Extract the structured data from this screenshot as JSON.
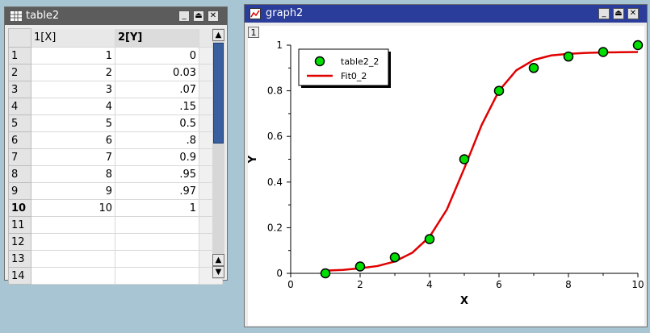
{
  "table_window": {
    "title": "table2",
    "columns": [
      "1[X]",
      "2[Y]"
    ],
    "active_row": "10",
    "rows": [
      {
        "n": "1",
        "x": "1",
        "y": "0"
      },
      {
        "n": "2",
        "x": "2",
        "y": "0.03"
      },
      {
        "n": "3",
        "x": "3",
        "y": ".07"
      },
      {
        "n": "4",
        "x": "4",
        "y": ".15"
      },
      {
        "n": "5",
        "x": "5",
        "y": "0.5"
      },
      {
        "n": "6",
        "x": "6",
        "y": ".8"
      },
      {
        "n": "7",
        "x": "7",
        "y": "0.9"
      },
      {
        "n": "8",
        "x": "8",
        "y": ".95"
      },
      {
        "n": "9",
        "x": "9",
        "y": ".97"
      },
      {
        "n": "10",
        "x": "10",
        "y": "1"
      },
      {
        "n": "11",
        "x": "",
        "y": ""
      },
      {
        "n": "12",
        "x": "",
        "y": ""
      },
      {
        "n": "13",
        "x": "",
        "y": ""
      },
      {
        "n": "14",
        "x": "",
        "y": ""
      }
    ]
  },
  "graph_window": {
    "title": "graph2",
    "layer_label": "1"
  },
  "chart_data": {
    "type": "scatter",
    "xlabel": "X",
    "ylabel": "Y",
    "xlim": [
      0,
      10
    ],
    "ylim": [
      0,
      1
    ],
    "xticks": [
      "0",
      "2",
      "4",
      "6",
      "8",
      "10"
    ],
    "yticks": [
      "0",
      "0.2",
      "0.4",
      "0.6",
      "0.8",
      "1"
    ],
    "legend_position": "top-left",
    "series": [
      {
        "name": "table2_2",
        "style": "markers",
        "color": "#00e000",
        "x": [
          1,
          2,
          3,
          4,
          5,
          6,
          7,
          8,
          9,
          10
        ],
        "y": [
          0,
          0.03,
          0.07,
          0.15,
          0.5,
          0.8,
          0.9,
          0.95,
          0.97,
          1
        ]
      },
      {
        "name": "Fit0_2",
        "style": "line",
        "color": "#e00000",
        "x": [
          1,
          1.5,
          2,
          2.5,
          3,
          3.5,
          4,
          4.5,
          5,
          5.5,
          6,
          6.5,
          7,
          7.5,
          8,
          8.5,
          9,
          9.5,
          10
        ],
        "y": [
          0.012,
          0.015,
          0.022,
          0.032,
          0.052,
          0.09,
          0.16,
          0.28,
          0.46,
          0.65,
          0.8,
          0.89,
          0.935,
          0.955,
          0.962,
          0.966,
          0.968,
          0.969,
          0.97
        ]
      }
    ]
  },
  "colors": {
    "table_title_bg": "#5c5c5c",
    "graph_title_bg": "#2b3d9a",
    "desktop": "#a7c5d3"
  }
}
